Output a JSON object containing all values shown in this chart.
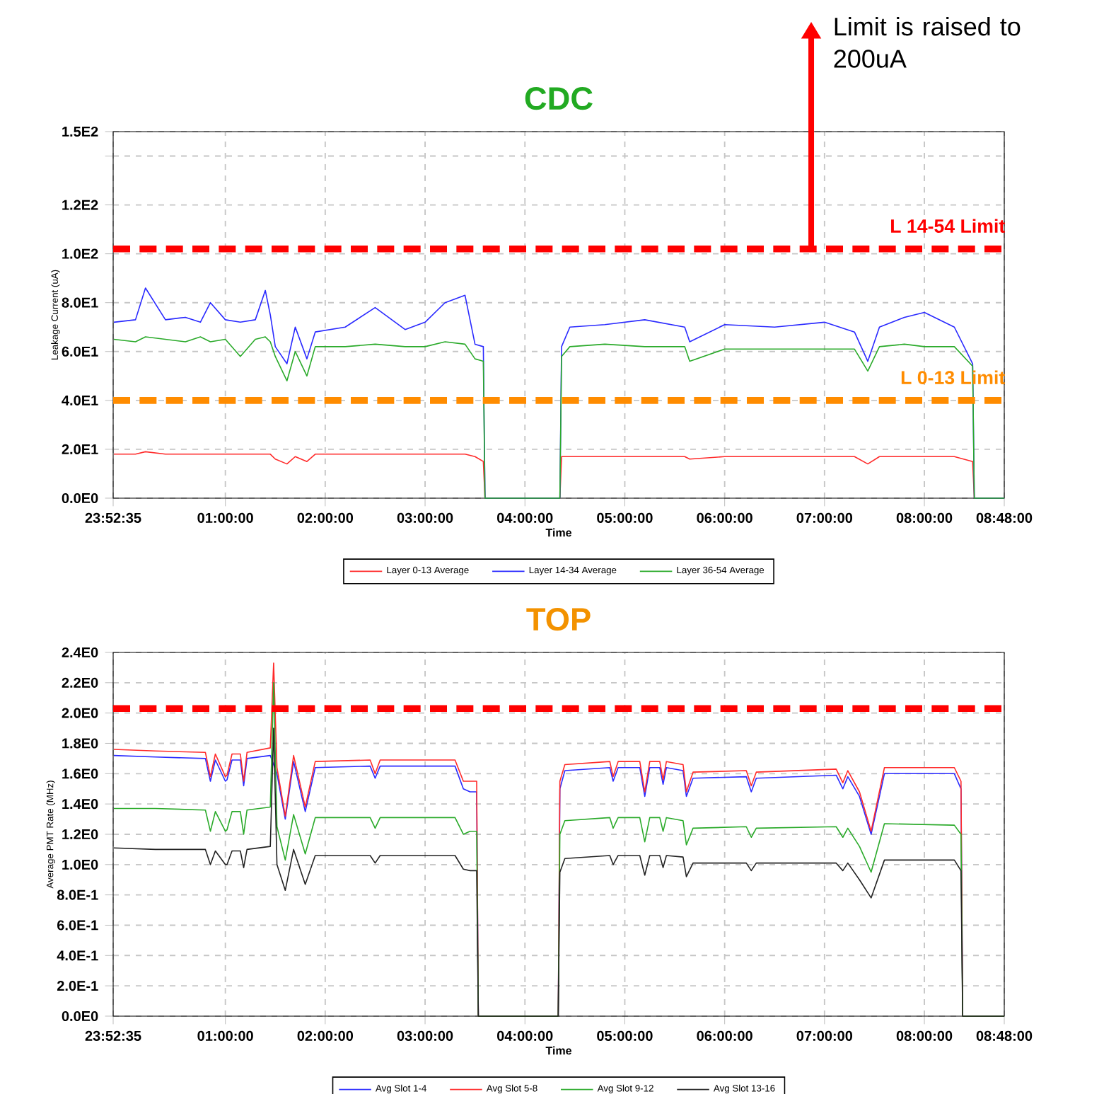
{
  "chart_data": [
    {
      "type": "line",
      "title": "CDC",
      "xlabel": "Time",
      "ylabel": "Leakage Current (uA)",
      "x": [
        "2000-01-01T23:53",
        "2000-01-02T00:06",
        "2000-01-02T00:12",
        "2000-01-02T00:24",
        "2000-01-02T00:36",
        "2000-01-02T00:45",
        "2000-01-02T00:51",
        "2000-01-02T01:00",
        "2000-01-02T01:09",
        "2000-01-02T01:18",
        "2000-01-02T01:24",
        "2000-01-02T01:27",
        "2000-01-02T01:30",
        "2000-01-02T01:37",
        "2000-01-02T01:42",
        "2000-01-02T01:49",
        "2000-01-02T01:54",
        "2000-01-02T02:12",
        "2000-01-02T02:30",
        "2000-01-02T02:48",
        "2000-01-02T03:00",
        "2000-01-02T03:12",
        "2000-01-02T03:24",
        "2000-01-02T03:30",
        "2000-01-02T03:35",
        "2000-01-02T03:36",
        "2000-01-02T04:21",
        "2000-01-02T04:22",
        "2000-01-02T04:27",
        "2000-01-02T04:48",
        "2000-01-02T05:12",
        "2000-01-02T05:36",
        "2000-01-02T05:39",
        "2000-01-02T06:00",
        "2000-01-02T06:30",
        "2000-01-02T07:00",
        "2000-01-02T07:18",
        "2000-01-02T07:26",
        "2000-01-02T07:33",
        "2000-01-02T07:48",
        "2000-01-02T08:00",
        "2000-01-02T08:18",
        "2000-01-02T08:29",
        "2000-01-02T08:30",
        "2000-01-02T08:48"
      ],
      "series": [
        {
          "name": "Layer 0-13 Average",
          "color": "#ff2a2a",
          "values": [
            18,
            18,
            19,
            18,
            18,
            18,
            18,
            18,
            18,
            18,
            18,
            18,
            16,
            14,
            17,
            15,
            18,
            18,
            18,
            18,
            18,
            18,
            18,
            17,
            15,
            0,
            0,
            17,
            17,
            17,
            17,
            17,
            16,
            17,
            17,
            17,
            17,
            14,
            17,
            17,
            17,
            17,
            15,
            0,
            0
          ]
        },
        {
          "name": "Layer 14-34 Average",
          "color": "#2a2aff",
          "values": [
            72,
            73,
            86,
            73,
            74,
            72,
            80,
            73,
            72,
            73,
            85,
            75,
            62,
            55,
            70,
            57,
            68,
            70,
            78,
            69,
            72,
            80,
            83,
            63,
            62,
            0,
            0,
            62,
            70,
            71,
            73,
            70,
            64,
            71,
            70,
            72,
            68,
            56,
            70,
            74,
            76,
            70,
            55,
            0,
            0
          ]
        },
        {
          "name": "Layer 36-54 Average",
          "color": "#2aaa2a",
          "values": [
            65,
            64,
            66,
            65,
            64,
            66,
            64,
            65,
            58,
            65,
            66,
            64,
            58,
            48,
            60,
            50,
            62,
            62,
            63,
            62,
            62,
            64,
            63,
            57,
            56,
            0,
            0,
            58,
            62,
            63,
            62,
            62,
            56,
            61,
            61,
            61,
            61,
            52,
            62,
            63,
            62,
            62,
            54,
            0,
            0
          ]
        }
      ],
      "xlim": [
        "2000-01-01T23:52:35",
        "2000-01-02T08:48"
      ],
      "xticks": [
        {
          "value": "2000-01-01T23:52:35",
          "label": "23:52:35"
        },
        {
          "value": "2000-01-02T01:00",
          "label": "01:00:00"
        },
        {
          "value": "2000-01-02T02:00",
          "label": "02:00:00"
        },
        {
          "value": "2000-01-02T03:00",
          "label": "03:00:00"
        },
        {
          "value": "2000-01-02T04:00",
          "label": "04:00:00"
        },
        {
          "value": "2000-01-02T05:00",
          "label": "05:00:00"
        },
        {
          "value": "2000-01-02T06:00",
          "label": "06:00:00"
        },
        {
          "value": "2000-01-02T07:00",
          "label": "07:00:00"
        },
        {
          "value": "2000-01-02T08:00",
          "label": "08:00:00"
        },
        {
          "value": "2000-01-02T08:48",
          "label": "08:48:00"
        }
      ],
      "ylim": [
        0,
        150
      ],
      "yticks": [
        {
          "value": 0,
          "label": "0.0E0"
        },
        {
          "value": 20,
          "label": "2.0E1"
        },
        {
          "value": 40,
          "label": "4.0E1"
        },
        {
          "value": 60,
          "label": "6.0E1"
        },
        {
          "value": 80,
          "label": "8.0E1"
        },
        {
          "value": 100,
          "label": "1.0E2"
        },
        {
          "value": 120,
          "label": "1.2E2"
        },
        {
          "value": 140,
          "label": null
        },
        {
          "value": 150,
          "label": "1.5E2"
        }
      ],
      "ref_lines": [
        {
          "axis": "y",
          "value": 102,
          "label": "L 14-54 Limit",
          "color": "#ff0000",
          "line_style": "dashed"
        },
        {
          "axis": "y",
          "value": 40,
          "label": "L 0-13 Limit",
          "color": "#ff8c00",
          "line_style": "dashed"
        }
      ],
      "annotations": [
        {
          "text": "Limit is raised to 200uA",
          "x": "2000-01-02T06:52",
          "y": 102
        }
      ],
      "grid": true,
      "legend": "bottom",
      "marker": "none",
      "line_style": "solid"
    },
    {
      "type": "line",
      "title": "TOP",
      "xlabel": "Time",
      "ylabel": "Average PMT Rate (MHz)",
      "x": [
        "2000-01-01T23:53",
        "2000-01-02T00:18",
        "2000-01-02T00:48",
        "2000-01-02T00:51",
        "2000-01-02T00:54",
        "2000-01-02T01:00",
        "2000-01-02T01:01",
        "2000-01-02T01:04",
        "2000-01-02T01:09",
        "2000-01-02T01:11",
        "2000-01-02T01:13",
        "2000-01-02T01:27",
        "2000-01-02T01:29",
        "2000-01-02T01:31",
        "2000-01-02T01:36",
        "2000-01-02T01:41",
        "2000-01-02T01:48",
        "2000-01-02T01:54",
        "2000-01-02T02:27",
        "2000-01-02T02:30",
        "2000-01-02T02:33",
        "2000-01-02T03:18",
        "2000-01-02T03:23",
        "2000-01-02T03:27",
        "2000-01-02T03:31",
        "2000-01-02T03:32",
        "2000-01-02T04:20",
        "2000-01-02T04:21",
        "2000-01-02T04:24",
        "2000-01-02T04:51",
        "2000-01-02T04:53",
        "2000-01-02T04:56",
        "2000-01-02T05:09",
        "2000-01-02T05:12",
        "2000-01-02T05:15",
        "2000-01-02T05:21",
        "2000-01-02T05:23",
        "2000-01-02T05:25",
        "2000-01-02T05:35",
        "2000-01-02T05:37",
        "2000-01-02T05:41",
        "2000-01-02T06:13",
        "2000-01-02T06:16",
        "2000-01-02T06:19",
        "2000-01-02T07:07",
        "2000-01-02T07:11",
        "2000-01-02T07:14",
        "2000-01-02T07:21",
        "2000-01-02T07:28",
        "2000-01-02T07:36",
        "2000-01-02T08:18",
        "2000-01-02T08:22",
        "2000-01-02T08:23",
        "2000-01-02T08:48"
      ],
      "series": [
        {
          "name": "Avg Slot 1-4",
          "color": "#2a2aff",
          "values": [
            1.72,
            1.71,
            1.7,
            1.55,
            1.69,
            1.55,
            1.56,
            1.69,
            1.69,
            1.52,
            1.7,
            1.72,
            null,
            1.6,
            1.3,
            1.68,
            1.35,
            1.64,
            1.65,
            1.57,
            1.65,
            1.65,
            1.5,
            1.48,
            1.48,
            0,
            0,
            1.5,
            1.62,
            1.64,
            1.55,
            1.64,
            1.64,
            1.45,
            1.64,
            1.64,
            1.53,
            1.64,
            1.62,
            1.45,
            1.57,
            1.58,
            1.48,
            1.57,
            1.59,
            1.5,
            1.58,
            1.45,
            1.2,
            1.6,
            1.6,
            1.5,
            0,
            0
          ]
        },
        {
          "name": "Avg Slot 5-8",
          "color": "#ff2a2a",
          "values": [
            1.76,
            1.75,
            1.74,
            1.58,
            1.73,
            1.58,
            1.59,
            1.73,
            1.73,
            1.55,
            1.74,
            1.77,
            2.33,
            1.64,
            1.32,
            1.72,
            1.38,
            1.68,
            1.69,
            1.6,
            1.69,
            1.69,
            1.55,
            1.55,
            1.55,
            0,
            0,
            1.55,
            1.66,
            1.68,
            1.58,
            1.68,
            1.68,
            1.48,
            1.68,
            1.68,
            1.56,
            1.68,
            1.66,
            1.48,
            1.61,
            1.62,
            1.52,
            1.61,
            1.63,
            1.54,
            1.62,
            1.48,
            1.22,
            1.64,
            1.64,
            1.55,
            0,
            0
          ]
        },
        {
          "name": "Avg Slot 9-12",
          "color": "#2aaa2a",
          "values": [
            1.37,
            1.37,
            1.36,
            1.22,
            1.35,
            1.22,
            1.23,
            1.35,
            1.35,
            1.2,
            1.36,
            1.38,
            2.2,
            1.25,
            1.03,
            1.33,
            1.07,
            1.31,
            1.31,
            1.24,
            1.31,
            1.31,
            1.2,
            1.22,
            1.22,
            0,
            0,
            1.2,
            1.29,
            1.31,
            1.24,
            1.31,
            1.31,
            1.15,
            1.31,
            1.31,
            1.22,
            1.31,
            1.29,
            1.13,
            1.24,
            1.25,
            1.18,
            1.24,
            1.25,
            1.18,
            1.24,
            1.12,
            0.95,
            1.27,
            1.26,
            1.2,
            0,
            0
          ]
        },
        {
          "name": "Avg Slot 13-16",
          "color": "#222222",
          "values": [
            1.11,
            1.1,
            1.1,
            1.0,
            1.09,
            1.0,
            1.0,
            1.09,
            1.09,
            0.98,
            1.1,
            1.12,
            1.9,
            1.0,
            0.83,
            1.1,
            0.87,
            1.06,
            1.06,
            1.01,
            1.06,
            1.06,
            0.97,
            0.96,
            0.96,
            0,
            0,
            0.95,
            1.04,
            1.06,
            1.0,
            1.06,
            1.06,
            0.93,
            1.06,
            1.06,
            0.98,
            1.06,
            1.05,
            0.92,
            1.01,
            1.01,
            0.96,
            1.01,
            1.01,
            0.96,
            1.01,
            0.9,
            0.78,
            1.03,
            1.03,
            0.96,
            0,
            0
          ]
        }
      ],
      "xlim": [
        "2000-01-01T23:52:35",
        "2000-01-02T08:48"
      ],
      "xticks": [
        {
          "value": "2000-01-01T23:52:35",
          "label": "23:52:35"
        },
        {
          "value": "2000-01-02T01:00",
          "label": "01:00:00"
        },
        {
          "value": "2000-01-02T02:00",
          "label": "02:00:00"
        },
        {
          "value": "2000-01-02T03:00",
          "label": "03:00:00"
        },
        {
          "value": "2000-01-02T04:00",
          "label": "04:00:00"
        },
        {
          "value": "2000-01-02T05:00",
          "label": "05:00:00"
        },
        {
          "value": "2000-01-02T06:00",
          "label": "06:00:00"
        },
        {
          "value": "2000-01-02T07:00",
          "label": "07:00:00"
        },
        {
          "value": "2000-01-02T08:00",
          "label": "08:00:00"
        },
        {
          "value": "2000-01-02T08:48",
          "label": "08:48:00"
        }
      ],
      "ylim": [
        0,
        2.4
      ],
      "yticks": [
        {
          "value": 0,
          "label": "0.0E0"
        },
        {
          "value": 0.2,
          "label": "2.0E-1"
        },
        {
          "value": 0.4,
          "label": "4.0E-1"
        },
        {
          "value": 0.6,
          "label": "6.0E-1"
        },
        {
          "value": 0.8,
          "label": "8.0E-1"
        },
        {
          "value": 1.0,
          "label": "1.0E0"
        },
        {
          "value": 1.2,
          "label": "1.2E0"
        },
        {
          "value": 1.4,
          "label": "1.4E0"
        },
        {
          "value": 1.6,
          "label": "1.6E0"
        },
        {
          "value": 1.8,
          "label": "1.8E0"
        },
        {
          "value": 2.0,
          "label": "2.0E0"
        },
        {
          "value": 2.2,
          "label": "2.2E0"
        },
        {
          "value": 2.4,
          "label": "2.4E0"
        }
      ],
      "ref_lines": [
        {
          "axis": "y",
          "value": 2.03,
          "color": "#ff0000",
          "line_style": "dashed"
        }
      ],
      "grid": true,
      "legend": "bottom",
      "marker": "none",
      "line_style": "solid"
    }
  ]
}
